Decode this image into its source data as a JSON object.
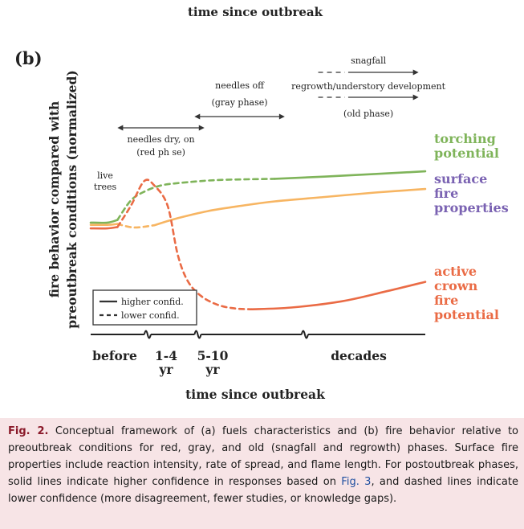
{
  "top_label": "time since outbreak",
  "panel_label": "(b)",
  "chart_data": {
    "type": "line",
    "title": "",
    "xlabel": "time since outbreak",
    "ylabel_line1": "fire behavior compared with",
    "ylabel_line2": "preoutbreak conditions (normalized)",
    "x_ticks": [
      {
        "id": "before",
        "lines": [
          "before"
        ]
      },
      {
        "id": "1-4",
        "lines": [
          "1-4",
          "yr"
        ]
      },
      {
        "id": "5-10",
        "lines": [
          "5-10",
          "yr"
        ]
      },
      {
        "id": "decades",
        "lines": [
          "decades"
        ]
      }
    ],
    "xlim": [
      0,
      100
    ],
    "ylim": [
      0,
      100
    ],
    "axis_breaks": [
      17,
      32,
      64
    ],
    "phases": [
      {
        "id": "snagfall",
        "label": "snagfall",
        "x_start": 68,
        "x_end": 98,
        "dash_end": 76,
        "label_lines": [
          "snagfall"
        ]
      },
      {
        "id": "regrowth",
        "label": "regrowth/understory development",
        "x_start": 68,
        "x_end": 98,
        "dash_end": 76,
        "label_lines": [
          "regrowth/understory development",
          "(old phase)"
        ]
      },
      {
        "id": "gray",
        "label": "needles off (gray phase)",
        "x_start": 31,
        "x_end": 58,
        "label_lines": [
          "needles off",
          "(gray phase)"
        ]
      },
      {
        "id": "red",
        "label": "needles dry, on (red phase)",
        "x_start": 8,
        "x_end": 34,
        "label_lines": [
          "needles dry, on",
          "(red ph se)"
        ]
      }
    ],
    "annotations": [
      {
        "id": "live-trees",
        "lines": [
          "live",
          "trees"
        ]
      }
    ],
    "series": [
      {
        "name": "torching potential",
        "label_lines": [
          "torching",
          "potential"
        ],
        "color": "#7fb45a",
        "segments": [
          {
            "style": "solid",
            "points": [
              [
                0,
                21
              ],
              [
                5,
                21
              ],
              [
                8,
                24
              ]
            ]
          },
          {
            "style": "dashed",
            "points": [
              [
                8,
                24
              ],
              [
                12,
                46
              ],
              [
                16,
                56
              ],
              [
                21,
                63
              ],
              [
                27,
                66
              ],
              [
                37,
                69
              ],
              [
                47,
                70
              ],
              [
                55,
                70.5
              ]
            ]
          },
          {
            "style": "solid",
            "points": [
              [
                55,
                70.5
              ],
              [
                75,
                74
              ],
              [
                100,
                79
              ]
            ]
          }
        ]
      },
      {
        "name": "surface fire properties",
        "label_lines": [
          "surface",
          "fire",
          "properties"
        ],
        "color": "#f7b562",
        "segments": [
          {
            "style": "solid",
            "points": [
              [
                0,
                18.5
              ],
              [
                5,
                18.5
              ],
              [
                8,
                19.5
              ]
            ]
          },
          {
            "style": "dashed",
            "points": [
              [
                8,
                19.5
              ],
              [
                13,
                15.5
              ],
              [
                19,
                18
              ]
            ]
          },
          {
            "style": "solid",
            "points": [
              [
                19,
                18
              ],
              [
                26,
                26
              ],
              [
                35,
                34
              ],
              [
                45,
                40
              ],
              [
                55,
                45
              ],
              [
                70,
                50
              ],
              [
                85,
                55
              ],
              [
                100,
                59
              ]
            ]
          }
        ]
      },
      {
        "name": "active crown fire potential",
        "label_lines": [
          "active",
          "crown",
          "fire",
          "potential"
        ],
        "color": "#ea6b45",
        "segments": [
          {
            "style": "solid",
            "points": [
              [
                0,
                14.5
              ],
              [
                5,
                14.5
              ],
              [
                8,
                16
              ]
            ]
          },
          {
            "style": "dashed",
            "points": [
              [
                8,
                16
              ],
              [
                12,
                40
              ],
              [
                16,
                68
              ],
              [
                19,
                63
              ],
              [
                23,
                40
              ],
              [
                26,
                -15
              ],
              [
                29,
                -45
              ],
              [
                33,
                -62
              ],
              [
                38,
                -72
              ],
              [
                43,
                -76
              ],
              [
                48,
                -77
              ]
            ]
          },
          {
            "style": "solid",
            "points": [
              [
                48,
                -77
              ],
              [
                60,
                -75
              ],
              [
                75,
                -68
              ],
              [
                88,
                -57
              ],
              [
                100,
                -46
              ]
            ]
          }
        ]
      }
    ],
    "legend": {
      "placement": "bottom-left",
      "entries": [
        {
          "style": "solid",
          "label": "higher confid."
        },
        {
          "style": "dashed",
          "label": "lower confid."
        }
      ]
    }
  },
  "caption": {
    "lead": "Fig. 2.",
    "text_before_link": " Conceptual framework of (a) fuels characteristics and (b) fire behavior relative to preoutbreak conditions for red, gray, and old (snagfall and regrowth) phases. Surface fire properties include reaction intensity, rate of spread, and flame length. For postoutbreak phases, solid lines indicate higher confidence in responses based on ",
    "link": "Fig. 3",
    "text_after_link": ", and dashed lines indicate lower confidence (more disagreement, fewer studies, or knowledge gaps)."
  },
  "colors": {
    "axis": "#222222",
    "caption_background": "#f7e4e6",
    "caption_lead": "#8a1a2a",
    "caption_link": "#1f4fa0",
    "surface_label": "#7a62b2"
  }
}
